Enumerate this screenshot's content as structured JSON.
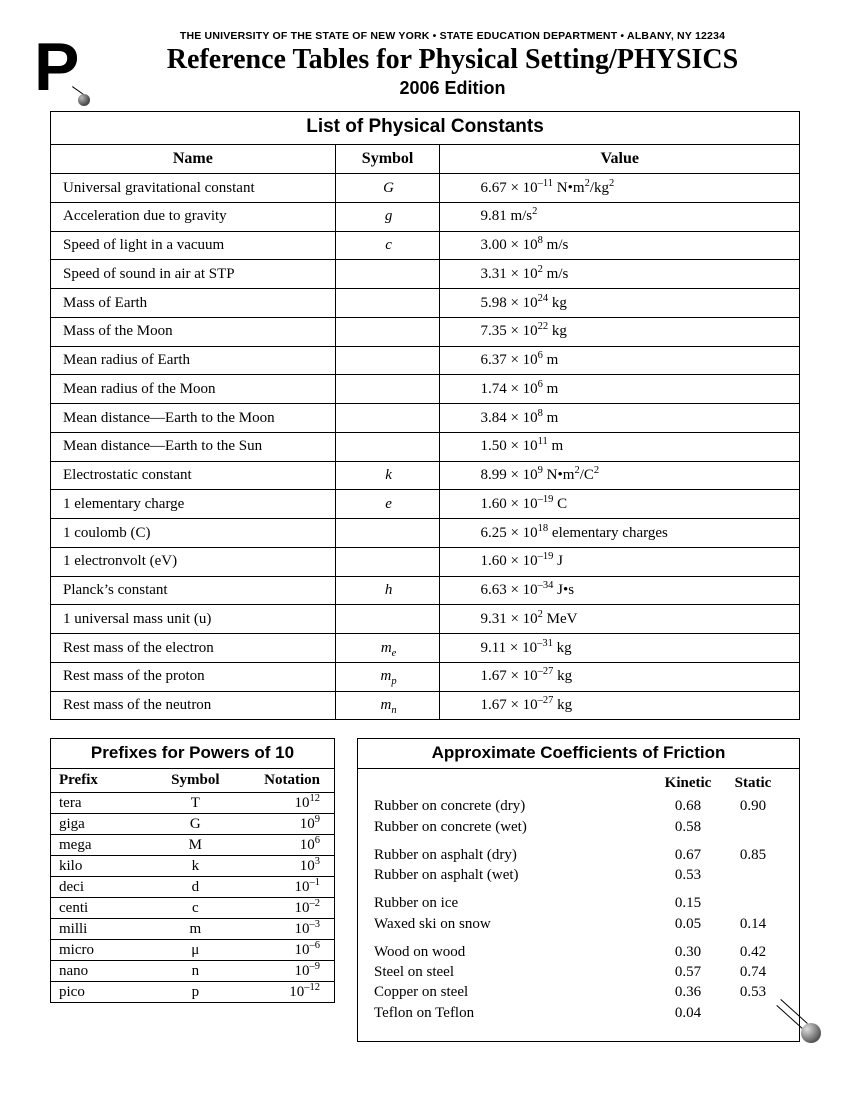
{
  "header": {
    "dept": "THE UNIVERSITY OF THE STATE OF NEW YORK • STATE EDUCATION DEPARTMENT • ALBANY, NY  12234",
    "title": "Reference Tables for Physical Setting/PHYSICS",
    "edition": "2006 Edition"
  },
  "constants": {
    "title": "List of Physical Constants",
    "head_name": "Name",
    "head_symbol": "Symbol",
    "head_value": "Value",
    "rows": [
      {
        "name": "Universal gravitational constant",
        "sym": "G",
        "val": "6.67 × 10<sup>–11</sup> N•m<sup>2</sup>/kg<sup>2</sup>"
      },
      {
        "name": "Acceleration due to gravity",
        "sym": "g",
        "val": "9.81 m/s<sup>2</sup>"
      },
      {
        "name": "Speed of light in a vacuum",
        "sym": "c",
        "val": "3.00 × 10<sup>8</sup> m/s"
      },
      {
        "name": "Speed of sound in air at STP",
        "sym": "",
        "val": "3.31 × 10<sup>2</sup> m/s"
      },
      {
        "name": "Mass of Earth",
        "sym": "",
        "val": "5.98 × 10<sup>24</sup> kg"
      },
      {
        "name": "Mass of the Moon",
        "sym": "",
        "val": "7.35 × 10<sup>22</sup> kg"
      },
      {
        "name": "Mean radius of Earth",
        "sym": "",
        "val": "6.37 × 10<sup>6</sup> m"
      },
      {
        "name": "Mean radius of the Moon",
        "sym": "",
        "val": "1.74 × 10<sup>6</sup> m"
      },
      {
        "name": "Mean distance—Earth to the Moon",
        "sym": "",
        "val": "3.84 × 10<sup>8</sup> m"
      },
      {
        "name": "Mean distance—Earth to the Sun",
        "sym": "",
        "val": "1.50 × 10<sup>11</sup> m"
      },
      {
        "name": "Electrostatic constant",
        "sym": "k",
        "val": "8.99 × 10<sup>9</sup> N•m<sup>2</sup>/C<sup>2</sup>"
      },
      {
        "name": "1 elementary charge",
        "sym": "e",
        "val": "1.60 × 10<sup>–19</sup> C"
      },
      {
        "name": "1 coulomb (C)",
        "sym": "",
        "val": "6.25 × 10<sup>18</sup> elementary charges"
      },
      {
        "name": "1 electronvolt (eV)",
        "sym": "",
        "val": "1.60 × 10<sup>–19</sup> J"
      },
      {
        "name": "Planck’s constant",
        "sym": "h",
        "val": "6.63 × 10<sup>–34</sup> J•s"
      },
      {
        "name": "1 universal mass unit (u)",
        "sym": "",
        "val": "9.31 × 10<sup>2</sup> MeV"
      },
      {
        "name": "Rest mass of the electron",
        "sym": "m<sub>e</sub>",
        "val": "9.11 × 10<sup>–31</sup> kg"
      },
      {
        "name": "Rest mass of the proton",
        "sym": "m<sub>p</sub>",
        "val": "1.67 × 10<sup>–27</sup> kg"
      },
      {
        "name": "Rest mass of the neutron",
        "sym": "m<sub>n</sub>",
        "val": "1.67 × 10<sup>–27</sup> kg"
      }
    ]
  },
  "prefixes": {
    "title": "Prefixes for Powers of 10",
    "head_prefix": "Prefix",
    "head_symbol": "Symbol",
    "head_notation": "Notation",
    "rows": [
      {
        "p": "tera",
        "s": "T",
        "n": "10<sup>12</sup>"
      },
      {
        "p": "giga",
        "s": "G",
        "n": "10<sup>9</sup>"
      },
      {
        "p": "mega",
        "s": "M",
        "n": "10<sup>6</sup>"
      },
      {
        "p": "kilo",
        "s": "k",
        "n": "10<sup>3</sup>"
      },
      {
        "p": "deci",
        "s": "d",
        "n": "10<sup>–1</sup>"
      },
      {
        "p": "centi",
        "s": "c",
        "n": "10<sup>–2</sup>"
      },
      {
        "p": "milli",
        "s": "m",
        "n": "10<sup>–3</sup>"
      },
      {
        "p": "micro",
        "s": "μ",
        "n": "10<sup>–6</sup>"
      },
      {
        "p": "nano",
        "s": "n",
        "n": "10<sup>–9</sup>"
      },
      {
        "p": "pico",
        "s": "p",
        "n": "10<sup>–12</sup>"
      }
    ]
  },
  "friction": {
    "title": "Approximate Coefficients of Friction",
    "head_kinetic": "Kinetic",
    "head_static": "Static",
    "groups": [
      [
        {
          "m": "Rubber on concrete (dry)",
          "k": "0.68",
          "s": "0.90"
        },
        {
          "m": "Rubber on concrete (wet)",
          "k": "0.58",
          "s": ""
        }
      ],
      [
        {
          "m": "Rubber on asphalt (dry)",
          "k": "0.67",
          "s": "0.85"
        },
        {
          "m": "Rubber on asphalt (wet)",
          "k": "0.53",
          "s": ""
        }
      ],
      [
        {
          "m": "Rubber on ice",
          "k": "0.15",
          "s": ""
        },
        {
          "m": "Waxed ski on snow",
          "k": "0.05",
          "s": "0.14"
        }
      ],
      [
        {
          "m": "Wood on wood",
          "k": "0.30",
          "s": "0.42"
        },
        {
          "m": "Steel on steel",
          "k": "0.57",
          "s": "0.74"
        },
        {
          "m": "Copper on steel",
          "k": "0.36",
          "s": "0.53"
        },
        {
          "m": "Teflon on Teflon",
          "k": "0.04",
          "s": ""
        }
      ]
    ]
  }
}
